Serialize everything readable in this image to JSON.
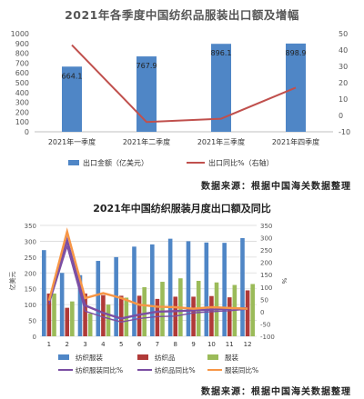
{
  "source_text": "数据来源：根据中国海关数据整理",
  "colors": {
    "blue": "#4f86c6",
    "dark_red": "#c0504d",
    "crimson": "#b03a38",
    "green": "#9bbb59",
    "purple": "#7b4ea3",
    "orange": "#f79646",
    "grid": "#d9d9d9"
  },
  "chart_data": [
    {
      "type": "bar",
      "title": "2021年各季度中国纺织品服装出口额及增幅",
      "categories": [
        "2021年一季度",
        "2021年二季度",
        "2021年三季度",
        "2021年四季度"
      ],
      "series": [
        {
          "name": "出口金额（亿美元）",
          "kind": "bar",
          "axis": "left",
          "values": [
            664.1,
            767.9,
            896.1,
            898.9
          ],
          "labels": [
            "664.1",
            "767.9",
            "896.1",
            "898.9"
          ]
        },
        {
          "name": "出口同比%（右轴）",
          "kind": "line",
          "axis": "right",
          "values": [
            43,
            -4,
            -2,
            17
          ]
        }
      ],
      "ylim": [
        0,
        1000
      ],
      "y2lim": [
        -10,
        50
      ],
      "yticks": [
        0,
        100,
        200,
        300,
        400,
        500,
        600,
        700,
        800,
        900,
        1000
      ],
      "y2ticks": [
        -10,
        0,
        10,
        20,
        30,
        40,
        50
      ],
      "grid": false,
      "legend": "bottom"
    },
    {
      "type": "bar",
      "title": "2021年中国纺织服装月度出口额及同比",
      "categories": [
        "1",
        "2",
        "3",
        "4",
        "5",
        "6",
        "7",
        "8",
        "9",
        "10",
        "11",
        "12"
      ],
      "ylabel": "亿美元",
      "y2label": "%",
      "series": [
        {
          "name": "纺织服装",
          "kind": "bar",
          "axis": "left",
          "values": [
            272,
            200,
            193,
            238,
            250,
            283,
            290,
            308,
            300,
            296,
            295,
            310
          ]
        },
        {
          "name": "纺织品",
          "kind": "bar",
          "axis": "left",
          "values": [
            135,
            90,
            135,
            130,
            128,
            128,
            118,
            125,
            125,
            127,
            123,
            145
          ]
        },
        {
          "name": "服装",
          "kind": "bar",
          "axis": "left",
          "values": [
            135,
            110,
            72,
            100,
            122,
            155,
            172,
            183,
            175,
            170,
            162,
            165
          ]
        },
        {
          "name": "纺织服装同比%",
          "kind": "line",
          "axis": "right",
          "values": [
            40,
            290,
            25,
            -5,
            -28,
            -12,
            0,
            2,
            5,
            8,
            12,
            14
          ]
        },
        {
          "name": "纺织品同比%",
          "kind": "line",
          "axis": "right",
          "values": [
            30,
            265,
            2,
            -22,
            -42,
            -28,
            -20,
            -18,
            -5,
            0,
            4,
            10
          ]
        },
        {
          "name": "服装同比%",
          "kind": "line",
          "axis": "right",
          "values": [
            45,
            325,
            55,
            75,
            55,
            28,
            20,
            18,
            12,
            18,
            15,
            12
          ]
        }
      ],
      "ylim": [
        0,
        350
      ],
      "y2lim": [
        -100,
        350
      ],
      "yticks": [
        0,
        50,
        100,
        150,
        200,
        250,
        300,
        350
      ],
      "y2ticks": [
        -100,
        -50,
        0,
        50,
        100,
        150,
        200,
        250,
        300,
        350
      ],
      "grid": true,
      "legend": "bottom"
    }
  ]
}
